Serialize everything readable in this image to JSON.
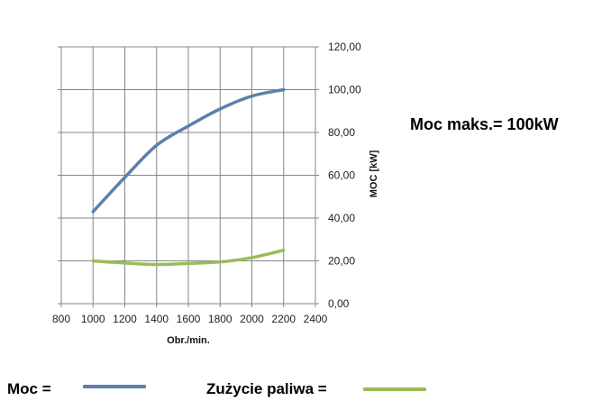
{
  "chart_data": {
    "type": "line",
    "xlabel": "Obr./min.",
    "ylabel": "MOC [kW]",
    "xlim": [
      800,
      2400
    ],
    "ylim": [
      0,
      120
    ],
    "x_ticks": [
      800,
      1000,
      1200,
      1400,
      1600,
      1800,
      2000,
      2200,
      2400
    ],
    "y_ticks": [
      "0,00",
      "20,00",
      "40,00",
      "60,00",
      "80,00",
      "100,00",
      "120,00"
    ],
    "y_axis_position": "right",
    "grid": true,
    "series": [
      {
        "name": "Moc",
        "color": "#5b80ab",
        "x": [
          1000,
          1200,
          1400,
          1600,
          1800,
          2000,
          2200
        ],
        "y": [
          43,
          59,
          74,
          83,
          91,
          97,
          100
        ]
      },
      {
        "name": "Zużycie paliwa",
        "color": "#9bbb59",
        "x": [
          1000,
          1200,
          1400,
          1600,
          1800,
          2000,
          2200
        ],
        "y": [
          20,
          19,
          18.3,
          18.8,
          19.5,
          21.5,
          25
        ]
      }
    ]
  },
  "annotation": "Moc maks.= 100kW",
  "legend": {
    "items": [
      {
        "label": "Moc =",
        "color": "#5b80ab"
      },
      {
        "label": "Zużycie paliwa =",
        "color": "#9bbb59"
      }
    ]
  }
}
